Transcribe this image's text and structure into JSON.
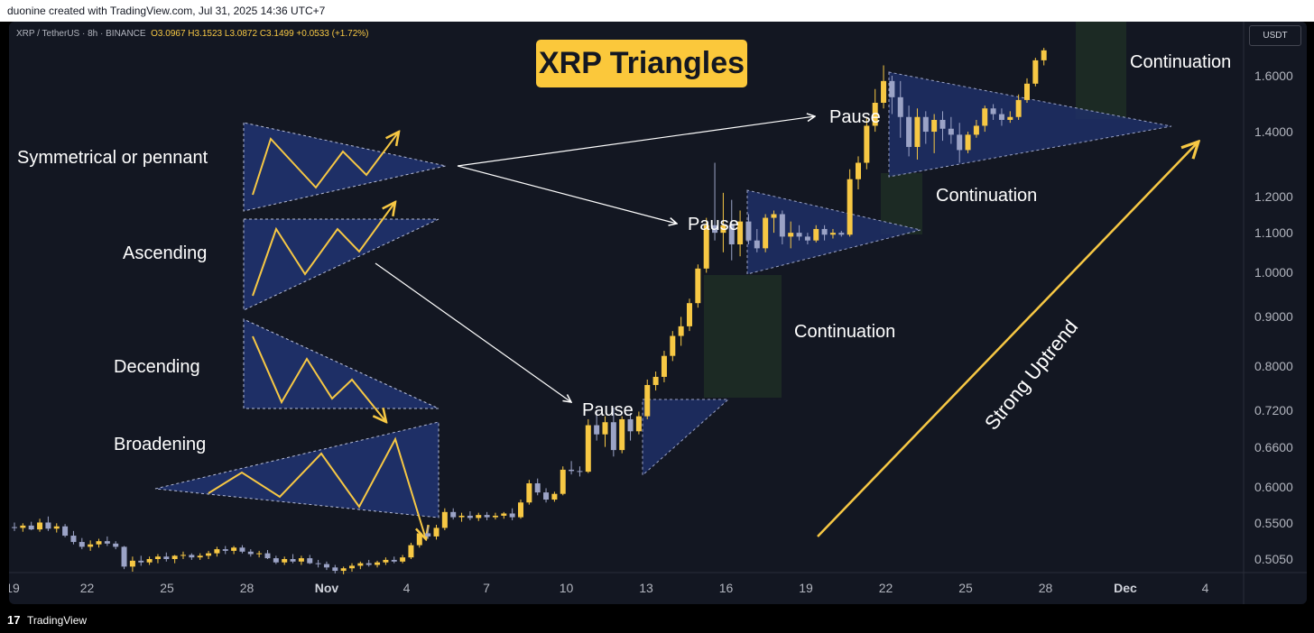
{
  "header": {
    "credit": "duonine created with TradingView.com, Jul 31, 2025 14:36 UTC+7"
  },
  "legend": {
    "symbol": "XRP / TetherUS · 8h · BINANCE",
    "open": "O3.0967",
    "high": "H3.1523",
    "low": "L3.0872",
    "close": "C3.1499",
    "change": "+0.0533 (+1.72%)"
  },
  "title": "XRP Triangles",
  "currency_button": "USDT",
  "footer": {
    "brand": "TradingView",
    "logo_glyph": "17"
  },
  "annotations": {
    "symmetrical": "Symmetrical or pennant",
    "ascending": "Ascending",
    "descending": "Decending",
    "broadening": "Broadening",
    "pause1": "Pause",
    "pause2": "Pause",
    "pause3": "Pause",
    "continuation1": "Continuation",
    "continuation2": "Continuation",
    "continuation3": "Continuation",
    "strong_uptrend": "Strong Uptrend"
  },
  "colors": {
    "background": "#131722",
    "bull": "#f7c844",
    "bear": "#9ba3c6",
    "triangle_fill": "#1e2f66",
    "continuation_fill": "#1c2b25",
    "arrow_yellow": "#f7c844",
    "title_bg": "#fbc83b"
  },
  "chart_data": {
    "type": "candlestick",
    "title": "XRP Triangles",
    "symbol": "XRP / TetherUS",
    "interval": "8h",
    "exchange": "BINANCE",
    "scale": "log",
    "price_ticks": [
      "1.6000",
      "1.4000",
      "1.2000",
      "1.1000",
      "1.0000",
      "0.9000",
      "0.8000",
      "0.7200",
      "0.6600",
      "0.6000",
      "0.5500",
      "0.5050"
    ],
    "x_ticks": [
      "19",
      "22",
      "25",
      "28",
      "Nov",
      "4",
      "7",
      "10",
      "13",
      "16",
      "19",
      "22",
      "25",
      "28",
      "Dec",
      "4"
    ],
    "x_ticks_bold": [
      "Nov",
      "Dec"
    ],
    "candles": [
      {
        "o": 0.545,
        "h": 0.551,
        "l": 0.54,
        "c": 0.544
      },
      {
        "o": 0.544,
        "h": 0.55,
        "l": 0.539,
        "c": 0.547
      },
      {
        "o": 0.547,
        "h": 0.552,
        "l": 0.541,
        "c": 0.542
      },
      {
        "o": 0.542,
        "h": 0.556,
        "l": 0.539,
        "c": 0.551
      },
      {
        "o": 0.551,
        "h": 0.559,
        "l": 0.54,
        "c": 0.543
      },
      {
        "o": 0.543,
        "h": 0.55,
        "l": 0.538,
        "c": 0.546
      },
      {
        "o": 0.546,
        "h": 0.549,
        "l": 0.532,
        "c": 0.534
      },
      {
        "o": 0.534,
        "h": 0.54,
        "l": 0.523,
        "c": 0.526
      },
      {
        "o": 0.526,
        "h": 0.531,
        "l": 0.517,
        "c": 0.52
      },
      {
        "o": 0.52,
        "h": 0.528,
        "l": 0.515,
        "c": 0.523
      },
      {
        "o": 0.523,
        "h": 0.53,
        "l": 0.519,
        "c": 0.527
      },
      {
        "o": 0.527,
        "h": 0.533,
        "l": 0.521,
        "c": 0.524
      },
      {
        "o": 0.524,
        "h": 0.527,
        "l": 0.517,
        "c": 0.52
      },
      {
        "o": 0.52,
        "h": 0.521,
        "l": 0.493,
        "c": 0.496
      },
      {
        "o": 0.496,
        "h": 0.508,
        "l": 0.49,
        "c": 0.503
      },
      {
        "o": 0.503,
        "h": 0.509,
        "l": 0.497,
        "c": 0.501
      },
      {
        "o": 0.501,
        "h": 0.508,
        "l": 0.498,
        "c": 0.505
      },
      {
        "o": 0.505,
        "h": 0.511,
        "l": 0.5,
        "c": 0.508
      },
      {
        "o": 0.508,
        "h": 0.513,
        "l": 0.502,
        "c": 0.505
      },
      {
        "o": 0.505,
        "h": 0.51,
        "l": 0.5,
        "c": 0.509
      },
      {
        "o": 0.509,
        "h": 0.514,
        "l": 0.505,
        "c": 0.51
      },
      {
        "o": 0.51,
        "h": 0.512,
        "l": 0.504,
        "c": 0.507
      },
      {
        "o": 0.507,
        "h": 0.512,
        "l": 0.504,
        "c": 0.509
      },
      {
        "o": 0.509,
        "h": 0.515,
        "l": 0.505,
        "c": 0.512
      },
      {
        "o": 0.512,
        "h": 0.52,
        "l": 0.508,
        "c": 0.517
      },
      {
        "o": 0.517,
        "h": 0.521,
        "l": 0.511,
        "c": 0.515
      },
      {
        "o": 0.515,
        "h": 0.521,
        "l": 0.511,
        "c": 0.519
      },
      {
        "o": 0.519,
        "h": 0.522,
        "l": 0.512,
        "c": 0.514
      },
      {
        "o": 0.514,
        "h": 0.517,
        "l": 0.508,
        "c": 0.511
      },
      {
        "o": 0.511,
        "h": 0.515,
        "l": 0.507,
        "c": 0.512
      },
      {
        "o": 0.512,
        "h": 0.516,
        "l": 0.505,
        "c": 0.506
      },
      {
        "o": 0.506,
        "h": 0.509,
        "l": 0.499,
        "c": 0.501
      },
      {
        "o": 0.501,
        "h": 0.508,
        "l": 0.498,
        "c": 0.505
      },
      {
        "o": 0.505,
        "h": 0.511,
        "l": 0.5,
        "c": 0.502
      },
      {
        "o": 0.502,
        "h": 0.509,
        "l": 0.498,
        "c": 0.506
      },
      {
        "o": 0.506,
        "h": 0.51,
        "l": 0.499,
        "c": 0.5
      },
      {
        "o": 0.5,
        "h": 0.504,
        "l": 0.495,
        "c": 0.499
      },
      {
        "o": 0.499,
        "h": 0.502,
        "l": 0.492,
        "c": 0.495
      },
      {
        "o": 0.495,
        "h": 0.498,
        "l": 0.488,
        "c": 0.491
      },
      {
        "o": 0.491,
        "h": 0.496,
        "l": 0.487,
        "c": 0.494
      },
      {
        "o": 0.494,
        "h": 0.5,
        "l": 0.49,
        "c": 0.497
      },
      {
        "o": 0.497,
        "h": 0.502,
        "l": 0.493,
        "c": 0.5
      },
      {
        "o": 0.5,
        "h": 0.504,
        "l": 0.496,
        "c": 0.498
      },
      {
        "o": 0.498,
        "h": 0.503,
        "l": 0.495,
        "c": 0.501
      },
      {
        "o": 0.501,
        "h": 0.507,
        "l": 0.498,
        "c": 0.504
      },
      {
        "o": 0.504,
        "h": 0.508,
        "l": 0.5,
        "c": 0.502
      },
      {
        "o": 0.502,
        "h": 0.51,
        "l": 0.5,
        "c": 0.507
      },
      {
        "o": 0.507,
        "h": 0.525,
        "l": 0.505,
        "c": 0.522
      },
      {
        "o": 0.522,
        "h": 0.54,
        "l": 0.519,
        "c": 0.537
      },
      {
        "o": 0.537,
        "h": 0.546,
        "l": 0.53,
        "c": 0.533
      },
      {
        "o": 0.533,
        "h": 0.548,
        "l": 0.529,
        "c": 0.544
      },
      {
        "o": 0.544,
        "h": 0.57,
        "l": 0.541,
        "c": 0.565
      },
      {
        "o": 0.565,
        "h": 0.57,
        "l": 0.555,
        "c": 0.558
      },
      {
        "o": 0.558,
        "h": 0.564,
        "l": 0.552,
        "c": 0.56
      },
      {
        "o": 0.56,
        "h": 0.566,
        "l": 0.554,
        "c": 0.557
      },
      {
        "o": 0.557,
        "h": 0.564,
        "l": 0.553,
        "c": 0.561
      },
      {
        "o": 0.561,
        "h": 0.565,
        "l": 0.554,
        "c": 0.558
      },
      {
        "o": 0.558,
        "h": 0.564,
        "l": 0.555,
        "c": 0.56
      },
      {
        "o": 0.56,
        "h": 0.565,
        "l": 0.556,
        "c": 0.563
      },
      {
        "o": 0.563,
        "h": 0.57,
        "l": 0.554,
        "c": 0.558
      },
      {
        "o": 0.558,
        "h": 0.582,
        "l": 0.556,
        "c": 0.578
      },
      {
        "o": 0.578,
        "h": 0.61,
        "l": 0.575,
        "c": 0.605
      },
      {
        "o": 0.605,
        "h": 0.612,
        "l": 0.588,
        "c": 0.592
      },
      {
        "o": 0.592,
        "h": 0.598,
        "l": 0.578,
        "c": 0.582
      },
      {
        "o": 0.582,
        "h": 0.593,
        "l": 0.579,
        "c": 0.59
      },
      {
        "o": 0.59,
        "h": 0.63,
        "l": 0.588,
        "c": 0.625
      },
      {
        "o": 0.625,
        "h": 0.638,
        "l": 0.618,
        "c": 0.623
      },
      {
        "o": 0.623,
        "h": 0.63,
        "l": 0.615,
        "c": 0.622
      },
      {
        "o": 0.622,
        "h": 0.705,
        "l": 0.62,
        "c": 0.695
      },
      {
        "o": 0.695,
        "h": 0.72,
        "l": 0.67,
        "c": 0.68
      },
      {
        "o": 0.68,
        "h": 0.71,
        "l": 0.66,
        "c": 0.7
      },
      {
        "o": 0.7,
        "h": 0.725,
        "l": 0.645,
        "c": 0.655
      },
      {
        "o": 0.655,
        "h": 0.71,
        "l": 0.65,
        "c": 0.705
      },
      {
        "o": 0.705,
        "h": 0.715,
        "l": 0.67,
        "c": 0.685
      },
      {
        "o": 0.685,
        "h": 0.718,
        "l": 0.68,
        "c": 0.71
      },
      {
        "o": 0.71,
        "h": 0.775,
        "l": 0.705,
        "c": 0.765
      },
      {
        "o": 0.765,
        "h": 0.79,
        "l": 0.755,
        "c": 0.78
      },
      {
        "o": 0.78,
        "h": 0.83,
        "l": 0.77,
        "c": 0.82
      },
      {
        "o": 0.82,
        "h": 0.87,
        "l": 0.81,
        "c": 0.86
      },
      {
        "o": 0.86,
        "h": 0.9,
        "l": 0.84,
        "c": 0.88
      },
      {
        "o": 0.88,
        "h": 0.94,
        "l": 0.87,
        "c": 0.93
      },
      {
        "o": 0.93,
        "h": 1.02,
        "l": 0.92,
        "c": 1.01
      },
      {
        "o": 1.01,
        "h": 1.14,
        "l": 1.0,
        "c": 1.12
      },
      {
        "o": 1.12,
        "h": 1.3,
        "l": 1.08,
        "c": 1.1
      },
      {
        "o": 1.1,
        "h": 1.21,
        "l": 1.05,
        "c": 1.12
      },
      {
        "o": 1.12,
        "h": 1.19,
        "l": 1.03,
        "c": 1.07
      },
      {
        "o": 1.07,
        "h": 1.16,
        "l": 1.04,
        "c": 1.13
      },
      {
        "o": 1.13,
        "h": 1.15,
        "l": 1.07,
        "c": 1.08
      },
      {
        "o": 1.08,
        "h": 1.11,
        "l": 1.05,
        "c": 1.06
      },
      {
        "o": 1.06,
        "h": 1.15,
        "l": 1.05,
        "c": 1.14
      },
      {
        "o": 1.14,
        "h": 1.16,
        "l": 1.1,
        "c": 1.15
      },
      {
        "o": 1.15,
        "h": 1.16,
        "l": 1.07,
        "c": 1.09
      },
      {
        "o": 1.09,
        "h": 1.13,
        "l": 1.06,
        "c": 1.1
      },
      {
        "o": 1.1,
        "h": 1.12,
        "l": 1.08,
        "c": 1.09
      },
      {
        "o": 1.09,
        "h": 1.1,
        "l": 1.07,
        "c": 1.08
      },
      {
        "o": 1.08,
        "h": 1.12,
        "l": 1.075,
        "c": 1.11
      },
      {
        "o": 1.11,
        "h": 1.12,
        "l": 1.08,
        "c": 1.095
      },
      {
        "o": 1.095,
        "h": 1.11,
        "l": 1.085,
        "c": 1.1
      },
      {
        "o": 1.1,
        "h": 1.105,
        "l": 1.09,
        "c": 1.095
      },
      {
        "o": 1.095,
        "h": 1.28,
        "l": 1.09,
        "c": 1.25
      },
      {
        "o": 1.25,
        "h": 1.32,
        "l": 1.22,
        "c": 1.3
      },
      {
        "o": 1.3,
        "h": 1.45,
        "l": 1.28,
        "c": 1.42
      },
      {
        "o": 1.42,
        "h": 1.55,
        "l": 1.4,
        "c": 1.5
      },
      {
        "o": 1.5,
        "h": 1.64,
        "l": 1.48,
        "c": 1.58
      },
      {
        "o": 1.58,
        "h": 1.6,
        "l": 1.46,
        "c": 1.52
      },
      {
        "o": 1.52,
        "h": 1.58,
        "l": 1.38,
        "c": 1.45
      },
      {
        "o": 1.45,
        "h": 1.49,
        "l": 1.32,
        "c": 1.35
      },
      {
        "o": 1.35,
        "h": 1.48,
        "l": 1.31,
        "c": 1.45
      },
      {
        "o": 1.45,
        "h": 1.47,
        "l": 1.36,
        "c": 1.4
      },
      {
        "o": 1.4,
        "h": 1.46,
        "l": 1.33,
        "c": 1.44
      },
      {
        "o": 1.44,
        "h": 1.47,
        "l": 1.37,
        "c": 1.41
      },
      {
        "o": 1.41,
        "h": 1.45,
        "l": 1.36,
        "c": 1.39
      },
      {
        "o": 1.39,
        "h": 1.43,
        "l": 1.3,
        "c": 1.34
      },
      {
        "o": 1.34,
        "h": 1.4,
        "l": 1.33,
        "c": 1.39
      },
      {
        "o": 1.39,
        "h": 1.44,
        "l": 1.38,
        "c": 1.42
      },
      {
        "o": 1.42,
        "h": 1.49,
        "l": 1.4,
        "c": 1.48
      },
      {
        "o": 1.48,
        "h": 1.495,
        "l": 1.44,
        "c": 1.46
      },
      {
        "o": 1.46,
        "h": 1.48,
        "l": 1.42,
        "c": 1.44
      },
      {
        "o": 1.44,
        "h": 1.47,
        "l": 1.43,
        "c": 1.45
      },
      {
        "o": 1.45,
        "h": 1.53,
        "l": 1.44,
        "c": 1.51
      },
      {
        "o": 1.51,
        "h": 1.59,
        "l": 1.5,
        "c": 1.57
      },
      {
        "o": 1.57,
        "h": 1.67,
        "l": 1.56,
        "c": 1.66
      },
      {
        "o": 1.66,
        "h": 1.71,
        "l": 1.64,
        "c": 1.7
      }
    ]
  }
}
